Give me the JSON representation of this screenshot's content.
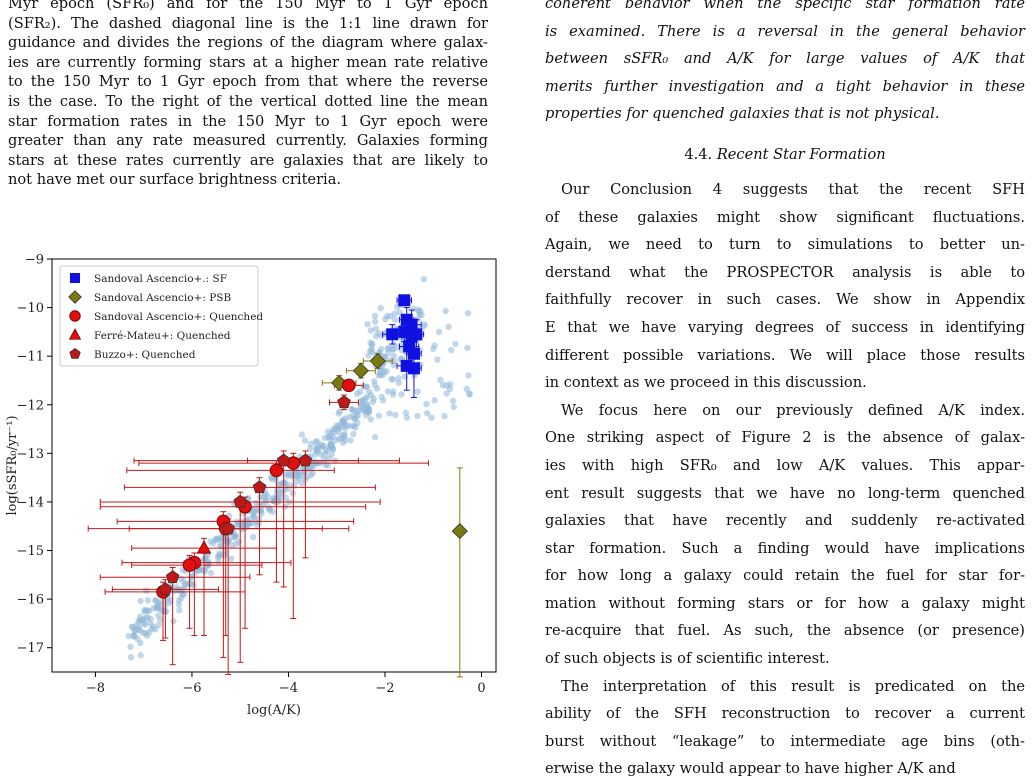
{
  "left": {
    "caption_lines": [
      "Myr epoch (SFR₀) and for the 150 Myr to 1 Gyr epoch",
      "(SFR₂). The dashed diagonal line is the 1:1 line drawn for",
      "guidance and divides the regions of the diagram where galax-",
      "ies are currently forming stars at a higher mean rate relative",
      "to the 150 Myr to 1 Gyr epoch from that where the reverse",
      "is the case. To the right of the vertical dotted line the mean",
      "star formation rates in the 150 Myr to 1 Gyr epoch were",
      "greater than any rate measured currently. Galaxies forming",
      "stars at these rates currently are galaxies that are likely to",
      "not have met our surface brightness criteria."
    ]
  },
  "right": {
    "italic_lines": [
      "coherent behavior when the specific star formation rate",
      "is examined. There is a reversal in the general behavior",
      "between sSFR₀ and A/K for large values of A/K that",
      "merits further investigation and a tight behavior in these",
      "properties for quenched galaxies that is not physical."
    ],
    "section_number": "4.4.",
    "section_title": "Recent Star Formation",
    "p1_lines": [
      "Our Conclusion 4 suggests that the recent SFH",
      "of these galaxies might show significant fluctuations.",
      "Again, we need to turn to simulations to better un-",
      "derstand what the PROSPECTOR analysis is able to",
      "faithfully recover in such cases. We show in Appendix",
      "E that we have varying degrees of success in identifying",
      "different possible variations. We will place those results",
      "in context as we proceed in this discussion."
    ],
    "p2_lines": [
      "We focus here on our previously defined A/K index.",
      "One striking aspect of Figure 2 is the absence of galax-",
      "ies with high SFR₀ and low A/K values. This appar-",
      "ent result suggests that we have no long-term quenched",
      "galaxies that have recently and suddenly re-activated",
      "star formation. Such a finding would have implications",
      "for how long a galaxy could retain the fuel for star for-",
      "mation without forming stars or for how a galaxy might",
      "re-acquire that fuel. As such, the absence (or presence)",
      "of such objects is of scientific interest."
    ],
    "p3_lines": [
      "The interpretation of this result is predicated on the",
      "ability of the SFH reconstruction to recover a current",
      "burst without “leakage” to intermediate age bins (oth-",
      "erwise the galaxy would appear to have higher A/K and"
    ]
  },
  "chart_data": {
    "type": "scatter",
    "xlabel": "log(A/K)",
    "ylabel": "log(sSFR₀/yr⁻¹)",
    "xlim": [
      -8.9,
      0.3
    ],
    "ylim": [
      -17.5,
      -9
    ],
    "xticks": [
      -8,
      -6,
      -4,
      -2,
      0
    ],
    "yticks": [
      -17,
      -16,
      -15,
      -14,
      -13,
      -12,
      -11,
      -10,
      -9
    ],
    "legend_position": "top-left",
    "colors": {
      "background": "#8fb8d8",
      "sf": "#1010e0",
      "psb": "#7a7a10",
      "quenched": "#e01010",
      "quenched_edge": "#7a0000",
      "errbar": "#c01818",
      "psb_errbar": "#8a7a10"
    },
    "legend": [
      {
        "label": "Sandoval Ascencio+.: SF",
        "marker": "square",
        "color": "#1010e0"
      },
      {
        "label": "Sandoval Ascencio+: PSB",
        "marker": "diamond",
        "color": "#7a7a10"
      },
      {
        "label": "Sandoval Ascencio+: Quenched",
        "marker": "circle",
        "color": "#e01010"
      },
      {
        "label": "Ferré-Mateu+: Quenched",
        "marker": "triangle",
        "color": "#e01010"
      },
      {
        "label": "Buzzo+: Quenched",
        "marker": "pentagon",
        "color": "#c01818"
      }
    ],
    "series": [
      {
        "name": "Sandoval Ascencio+.: SF",
        "marker": "square",
        "points": [
          {
            "x": -1.6,
            "y": -9.85,
            "ex": 0.15,
            "ey": 0.1
          },
          {
            "x": -1.55,
            "y": -10.25,
            "ex": 0.15,
            "ey": 0.25
          },
          {
            "x": -1.45,
            "y": -10.35,
            "ex": 0.2,
            "ey": 0.3
          },
          {
            "x": -1.85,
            "y": -10.55,
            "ex": 0.2,
            "ey": 0.2
          },
          {
            "x": -1.6,
            "y": -10.5,
            "ex": 0.2,
            "ey": 0.2
          },
          {
            "x": -1.45,
            "y": -10.6,
            "ex": 0.2,
            "ey": 0.35
          },
          {
            "x": -1.35,
            "y": -10.55,
            "ex": 0.15,
            "ey": 0.3
          },
          {
            "x": -1.5,
            "y": -10.8,
            "ex": 0.2,
            "ey": 0.3
          },
          {
            "x": -1.4,
            "y": -10.95,
            "ex": 0.15,
            "ey": 0.35
          },
          {
            "x": -1.55,
            "y": -11.2,
            "ex": 0.2,
            "ey": 0.5
          },
          {
            "x": -1.4,
            "y": -11.25,
            "ex": 0.15,
            "ey": 0.6
          }
        ]
      },
      {
        "name": "Sandoval Ascencio+: PSB",
        "marker": "diamond",
        "points": [
          {
            "x": -2.15,
            "y": -11.1,
            "ex": 0.3,
            "ey": 0.15
          },
          {
            "x": -2.5,
            "y": -11.3,
            "ex": 0.3,
            "ey": 0.15
          },
          {
            "x": -2.95,
            "y": -11.55,
            "ex": 0.35,
            "ey": 0.15
          },
          {
            "x": -0.45,
            "y": -14.6,
            "ex": 0,
            "ey_up": 1.3,
            "ey_down": 3.0
          }
        ]
      },
      {
        "name": "Sandoval Ascencio+: Quenched",
        "marker": "circle",
        "points": [
          {
            "x": -2.75,
            "y": -11.6,
            "ex": 0.3,
            "ey": 0.1
          },
          {
            "x": -3.9,
            "y": -13.2,
            "xerr_minus": 3.2,
            "xerr_plus": 2.8,
            "yerr_minus": 3.2,
            "yerr_plus": 0.2
          },
          {
            "x": -4.25,
            "y": -13.35,
            "xerr_minus": 3.1,
            "xerr_plus": 1.2,
            "yerr_minus": 2.3,
            "yerr_plus": 0.2
          },
          {
            "x": -4.9,
            "y": -14.1,
            "xerr_minus": 3.0,
            "xerr_plus": 2.5,
            "yerr_minus": 2.5,
            "yerr_plus": 0.2
          },
          {
            "x": -5.35,
            "y": -14.4,
            "xerr_minus": 2.2,
            "xerr_plus": 2.7,
            "yerr_minus": 2.8,
            "yerr_plus": 0.2
          },
          {
            "x": -5.3,
            "y": -14.55,
            "xerr_minus": 2.0,
            "xerr_plus": 2.0,
            "yerr_minus": 2.2,
            "yerr_plus": 0.2
          },
          {
            "x": -5.95,
            "y": -15.25,
            "xerr_minus": 1.5,
            "xerr_plus": 2.0,
            "yerr_minus": 1.5,
            "yerr_plus": 0.2
          },
          {
            "x": -6.05,
            "y": -15.3,
            "xerr_minus": 1.2,
            "xerr_plus": 1.5,
            "yerr_minus": 1.3,
            "yerr_plus": 0.2
          },
          {
            "x": -6.6,
            "y": -15.85,
            "xerr_minus": 1.2,
            "xerr_plus": 1.7,
            "yerr_minus": 1.0,
            "yerr_plus": 0.2
          }
        ]
      },
      {
        "name": "Ferré-Mateu+: Quenched",
        "marker": "triangle",
        "points": [
          {
            "x": -5.75,
            "y": -14.95,
            "xerr_minus": 1.5,
            "xerr_plus": 1.5,
            "yerr_minus": 1.8,
            "yerr_plus": 0.2
          }
        ]
      },
      {
        "name": "Buzzo+: Quenched",
        "marker": "pentagon",
        "points": [
          {
            "x": -2.85,
            "y": -11.95,
            "ex": 0.3,
            "ey": 0.15
          },
          {
            "x": -3.65,
            "y": -13.15,
            "xerr_minus": 1.2,
            "xerr_plus": 1.1,
            "yerr_minus": 2.0,
            "yerr_plus": 0.2
          },
          {
            "x": -4.1,
            "y": -13.15,
            "xerr_minus": 3.1,
            "xerr_plus": 2.4,
            "yerr_minus": 2.6,
            "yerr_plus": 0.2
          },
          {
            "x": -4.6,
            "y": -13.7,
            "xerr_minus": 2.8,
            "xerr_plus": 2.4,
            "yerr_minus": 1.8,
            "yerr_plus": 0.2
          },
          {
            "x": -5.0,
            "y": -14.0,
            "xerr_minus": 2.9,
            "xerr_plus": 2.9,
            "yerr_minus": 3.3,
            "yerr_plus": 0.2
          },
          {
            "x": -5.25,
            "y": -14.55,
            "xerr_minus": 2.9,
            "xerr_plus": 2.5,
            "yerr_minus": 3.0,
            "yerr_plus": 0.2
          },
          {
            "x": -6.4,
            "y": -15.55,
            "xerr_minus": 1.5,
            "xerr_plus": 1.6,
            "yerr_minus": 1.8,
            "yerr_plus": 0.2
          },
          {
            "x": -6.55,
            "y": -15.8,
            "xerr_minus": 1.1,
            "xerr_plus": 1.1,
            "yerr_minus": 1.0,
            "yerr_plus": 0.2
          }
        ]
      }
    ]
  }
}
